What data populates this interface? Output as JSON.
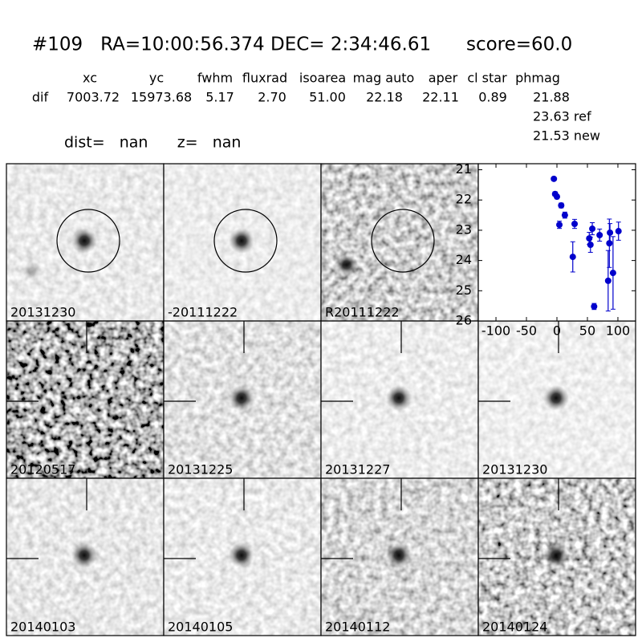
{
  "header": {
    "title": "#109   RA=10:00:56.374 DEC= 2:34:46.61      score=60.0",
    "dist": "dist=   nan      z=   nan"
  },
  "table": {
    "columns": [
      "xc",
      "yc",
      "fwhm",
      "fluxrad",
      "isoarea",
      "mag auto",
      "aper",
      "cl star",
      "phmag"
    ],
    "rows": [
      [
        "dif",
        "7003.72",
        "15973.68",
        "5.17",
        "2.70",
        "51.00",
        "22.18",
        "22.11",
        "0.89",
        "21.88"
      ]
    ],
    "phmag_extra": [
      "23.63 ref",
      "21.53 new"
    ]
  },
  "panels": [
    {
      "label": "20131230"
    },
    {
      "label": "-20111222"
    },
    {
      "label": "R20111222"
    },
    {
      "label": "20120517"
    },
    {
      "label": "20131225"
    },
    {
      "label": "20131227"
    },
    {
      "label": "20131230",
      "color": "#ff0000"
    },
    {
      "label": "20140103"
    },
    {
      "label": "20140105"
    },
    {
      "label": "20140112"
    },
    {
      "label": "20140124"
    }
  ],
  "chart_data": {
    "type": "scatter",
    "color": "#0000cc",
    "x": [
      -5,
      -3,
      0,
      7,
      4,
      13,
      29,
      26,
      53,
      55,
      58,
      61,
      70,
      84,
      87,
      86,
      92,
      101
    ],
    "y": [
      21.3,
      21.8,
      21.89,
      22.18,
      22.82,
      22.5,
      22.79,
      23.88,
      23.27,
      23.48,
      22.95,
      25.52,
      23.16,
      24.67,
      23.08,
      23.43,
      24.41,
      23.03
    ],
    "error": [
      0.05,
      0.07,
      0.07,
      0.08,
      0.12,
      0.1,
      0.15,
      0.5,
      0.2,
      0.25,
      0.2,
      0.1,
      0.2,
      1.0,
      0.3,
      0.8,
      1.2,
      0.3
    ],
    "xlim": [
      -129,
      129
    ],
    "ylim": [
      20.8,
      26
    ],
    "y_inverted": true,
    "xticks": [
      -100,
      -50,
      0,
      50,
      100
    ],
    "yticks": [
      21,
      22,
      23,
      24,
      25,
      26
    ]
  }
}
